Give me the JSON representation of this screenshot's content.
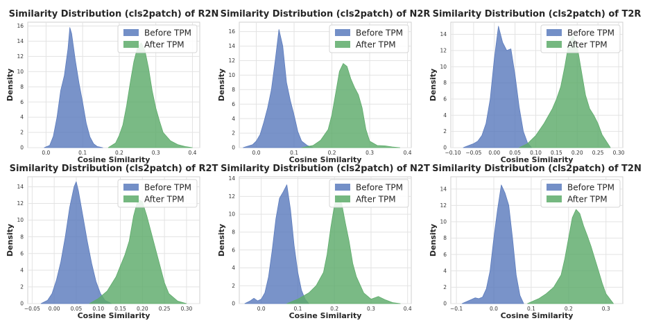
{
  "chart_data": [
    {
      "type": "area",
      "title": "Similarity Distribution (cls2patch) of R2N",
      "xlabel": "Cosine Similarity",
      "ylabel": "Density",
      "xlim": [
        -0.05,
        0.42
      ],
      "ylim": [
        0,
        16.5
      ],
      "xticks": [
        "0.0",
        "0.1",
        "0.2",
        "0.3",
        "0.4"
      ],
      "yticks": [
        "0",
        "2",
        "4",
        "6",
        "8",
        "10",
        "12",
        "14",
        "16"
      ],
      "legend": [
        "Before TPM",
        "After TPM"
      ],
      "legend_position": "top-right",
      "grid": true,
      "series": [
        {
          "name": "Before TPM",
          "color": "#5b7bbd",
          "x": [
            -0.005,
            0.01,
            0.02,
            0.03,
            0.04,
            0.05,
            0.06,
            0.065,
            0.07,
            0.08,
            0.09,
            0.1,
            0.11,
            0.12,
            0.13,
            0.14,
            0.155
          ],
          "y": [
            0,
            0.3,
            1.5,
            4,
            7.5,
            9.5,
            13,
            15.8,
            15,
            11.5,
            8.5,
            6,
            3.2,
            1.4,
            0.5,
            0.15,
            0
          ]
        },
        {
          "name": "After TPM",
          "color": "#5dab6a",
          "x": [
            0.17,
            0.19,
            0.2,
            0.21,
            0.22,
            0.23,
            0.24,
            0.25,
            0.26,
            0.27,
            0.28,
            0.29,
            0.3,
            0.31,
            0.32,
            0.34,
            0.36,
            0.38,
            0.4
          ],
          "y": [
            0,
            0.6,
            1.6,
            3,
            5.5,
            8.5,
            11.3,
            13.2,
            13.8,
            12.8,
            10.5,
            7.5,
            5.2,
            3.5,
            2,
            0.9,
            0.4,
            0.15,
            0
          ]
        }
      ]
    },
    {
      "type": "area",
      "title": "Similarity Distribution (cls2patch) of N2R",
      "xlabel": "Cosine Similarity",
      "ylabel": "Density",
      "xlim": [
        -0.045,
        0.41
      ],
      "ylim": [
        0,
        17.3
      ],
      "xticks": [
        "0.0",
        "0.1",
        "0.2",
        "0.3",
        "0.4"
      ],
      "yticks": [
        "0",
        "2",
        "4",
        "6",
        "8",
        "10",
        "12",
        "14",
        "16"
      ],
      "legend": [
        "Before TPM",
        "After TPM"
      ],
      "legend_position": "top-right",
      "grid": true,
      "series": [
        {
          "name": "Before TPM",
          "color": "#5b7bbd",
          "x": [
            -0.035,
            -0.01,
            0.0,
            0.01,
            0.02,
            0.03,
            0.04,
            0.05,
            0.06,
            0.07,
            0.08,
            0.09,
            0.1,
            0.11,
            0.12,
            0.135,
            0.15
          ],
          "y": [
            0,
            0.4,
            0.9,
            1.8,
            3.5,
            5.5,
            8,
            12,
            16.3,
            14,
            9,
            6.5,
            4.5,
            2.2,
            0.9,
            0.3,
            0
          ]
        },
        {
          "name": "After TPM",
          "color": "#5dab6a",
          "x": [
            0.12,
            0.15,
            0.17,
            0.19,
            0.2,
            0.21,
            0.22,
            0.23,
            0.24,
            0.25,
            0.26,
            0.27,
            0.28,
            0.29,
            0.3,
            0.32,
            0.34,
            0.36,
            0.38
          ],
          "y": [
            0,
            0.3,
            1,
            2.5,
            4.5,
            7.5,
            10.5,
            11.6,
            11.2,
            9.5,
            8.3,
            7.3,
            5.5,
            2.5,
            0.9,
            0.3,
            0.25,
            0.1,
            0
          ]
        }
      ]
    },
    {
      "type": "area",
      "title": "Similarity Distribution (cls2patch) of T2R",
      "xlabel": "Cosine Similarity",
      "ylabel": "Density",
      "xlim": [
        -0.105,
        0.31
      ],
      "ylim": [
        0,
        15.5
      ],
      "xticks": [
        "−0.10",
        "−0.05",
        "0.00",
        "0.05",
        "0.10",
        "0.15",
        "0.20",
        "0.25",
        "0.30"
      ],
      "yticks": [
        "0",
        "2",
        "4",
        "6",
        "8",
        "10",
        "12",
        "14"
      ],
      "legend": [
        "Before TPM",
        "After TPM"
      ],
      "legend_position": "top-right",
      "grid": true,
      "series": [
        {
          "name": "Before TPM",
          "color": "#5b7bbd",
          "x": [
            -0.075,
            -0.06,
            -0.05,
            -0.04,
            -0.03,
            -0.02,
            -0.01,
            0.0,
            0.01,
            0.02,
            0.03,
            0.04,
            0.05,
            0.06,
            0.07,
            0.08,
            0.09
          ],
          "y": [
            0,
            0.3,
            0.5,
            0.8,
            1.5,
            3,
            6,
            11,
            15,
            13,
            12,
            12.2,
            9,
            5,
            2,
            0.6,
            0
          ]
        },
        {
          "name": "After TPM",
          "color": "#5dab6a",
          "x": [
            0.06,
            0.08,
            0.1,
            0.12,
            0.14,
            0.15,
            0.16,
            0.17,
            0.18,
            0.19,
            0.2,
            0.21,
            0.22,
            0.23,
            0.24,
            0.25,
            0.26,
            0.28
          ],
          "y": [
            0,
            0.5,
            1.5,
            3,
            4.8,
            6,
            7.5,
            10,
            13,
            13.8,
            12.5,
            9.5,
            6.5,
            4.8,
            4,
            3,
            1.6,
            0
          ]
        }
      ]
    },
    {
      "type": "area",
      "title": "Similarity Distribution (cls2patch) of R2T",
      "xlabel": "Cosine Similarity",
      "ylabel": "Density",
      "xlim": [
        -0.06,
        0.33
      ],
      "ylim": [
        0,
        15.2
      ],
      "xticks": [
        "−0.05",
        "0.00",
        "0.05",
        "0.10",
        "0.15",
        "0.20",
        "0.25",
        "0.30"
      ],
      "yticks": [
        "0",
        "2",
        "4",
        "6",
        "8",
        "10",
        "12",
        "14"
      ],
      "legend": [
        "Before TPM",
        "After TPM"
      ],
      "legend_position": "top-right",
      "grid": true,
      "series": [
        {
          "name": "Before TPM",
          "color": "#5b7bbd",
          "x": [
            -0.03,
            -0.015,
            -0.005,
            0.005,
            0.015,
            0.025,
            0.035,
            0.045,
            0.05,
            0.055,
            0.065,
            0.075,
            0.085,
            0.095,
            0.105,
            0.115,
            0.13
          ],
          "y": [
            0,
            0.4,
            1.2,
            2.8,
            5,
            8,
            11.5,
            14,
            14.6,
            13.5,
            10.5,
            7.5,
            4.8,
            2.6,
            1.2,
            0.4,
            0
          ]
        },
        {
          "name": "After TPM",
          "color": "#5dab6a",
          "x": [
            0.08,
            0.1,
            0.12,
            0.14,
            0.15,
            0.16,
            0.17,
            0.18,
            0.19,
            0.2,
            0.21,
            0.22,
            0.23,
            0.24,
            0.25,
            0.26,
            0.28,
            0.3
          ],
          "y": [
            0,
            0.6,
            1.5,
            3.2,
            4.5,
            5.8,
            7.5,
            10.5,
            12.5,
            12.2,
            10.5,
            8.5,
            6.5,
            4.5,
            2.5,
            1.2,
            0.3,
            0
          ]
        }
      ]
    },
    {
      "type": "area",
      "title": "Similarity Distribution (cls2patch) of N2T",
      "xlabel": "Cosine Similarity",
      "ylabel": "Density",
      "xlim": [
        -0.06,
        0.41
      ],
      "ylim": [
        0,
        14.2
      ],
      "xticks": [
        "0.0",
        "0.1",
        "0.2",
        "0.3",
        "0.4"
      ],
      "yticks": [
        "0",
        "2",
        "4",
        "6",
        "8",
        "10",
        "12",
        "14"
      ],
      "legend": [
        "Before TPM",
        "After TPM"
      ],
      "legend_position": "top-right",
      "grid": true,
      "series": [
        {
          "name": "Before TPM",
          "color": "#5b7bbd",
          "x": [
            -0.045,
            -0.03,
            -0.02,
            -0.01,
            0.0,
            0.01,
            0.02,
            0.03,
            0.04,
            0.05,
            0.06,
            0.07,
            0.08,
            0.09,
            0.1,
            0.11,
            0.12,
            0.13
          ],
          "y": [
            0,
            0.3,
            0.6,
            0.3,
            0.5,
            1.2,
            3,
            6,
            9.5,
            11.8,
            12.5,
            13.3,
            10.5,
            6.5,
            3.5,
            1.5,
            0.5,
            0
          ]
        },
        {
          "name": "After TPM",
          "color": "#5dab6a",
          "x": [
            0.07,
            0.1,
            0.13,
            0.15,
            0.17,
            0.18,
            0.19,
            0.2,
            0.21,
            0.22,
            0.23,
            0.24,
            0.25,
            0.26,
            0.28,
            0.3,
            0.32,
            0.34,
            0.36,
            0.38
          ],
          "y": [
            0,
            0.5,
            1.2,
            2,
            3.5,
            5.5,
            8.5,
            11,
            12,
            11.2,
            9,
            7,
            4.5,
            3,
            1.2,
            0.5,
            0.8,
            0.4,
            0.1,
            0
          ]
        }
      ]
    },
    {
      "type": "area",
      "title": "Similarity Distribution (cls2patch) of T2N",
      "xlabel": "Cosine Similarity",
      "ylabel": "Density",
      "xlim": [
        -0.115,
        0.345
      ],
      "ylim": [
        0,
        15.5
      ],
      "xticks": [
        "−0.1",
        "0.0",
        "0.1",
        "0.2",
        "0.3"
      ],
      "yticks": [
        "0",
        "2",
        "4",
        "6",
        "8",
        "10",
        "12",
        "14"
      ],
      "legend": [
        "Before TPM",
        "After TPM"
      ],
      "legend_position": "top-right",
      "grid": true,
      "series": [
        {
          "name": "Before TPM",
          "color": "#5b7bbd",
          "x": [
            -0.085,
            -0.07,
            -0.06,
            -0.05,
            -0.04,
            -0.03,
            -0.02,
            -0.01,
            0.0,
            0.01,
            0.02,
            0.03,
            0.04,
            0.05,
            0.06,
            0.07,
            0.08
          ],
          "y": [
            0,
            0.3,
            0.5,
            0.7,
            0.6,
            0.8,
            1.8,
            4,
            8,
            11.5,
            14.5,
            13.5,
            12,
            8,
            3.5,
            1,
            0
          ]
        },
        {
          "name": "After TPM",
          "color": "#5dab6a",
          "x": [
            0.09,
            0.12,
            0.14,
            0.16,
            0.18,
            0.19,
            0.2,
            0.21,
            0.22,
            0.23,
            0.24,
            0.25,
            0.26,
            0.27,
            0.28,
            0.29,
            0.3,
            0.32
          ],
          "y": [
            0,
            0.6,
            1.2,
            2,
            3.5,
            5.5,
            8,
            10.5,
            11.5,
            11,
            9.5,
            8.3,
            7,
            5.5,
            4,
            2.5,
            1.2,
            0
          ]
        }
      ]
    }
  ]
}
